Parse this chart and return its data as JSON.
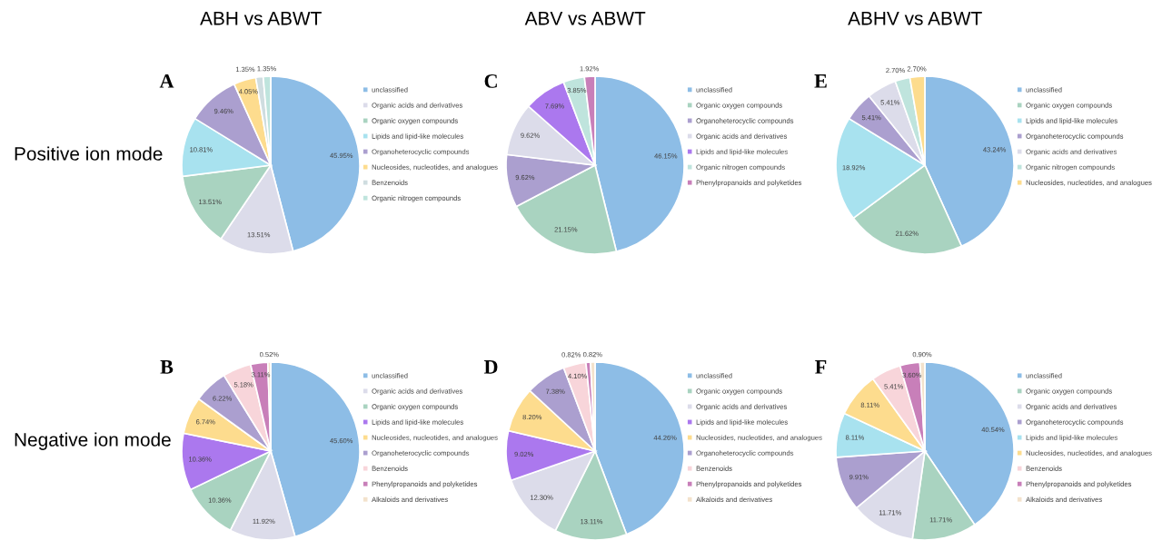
{
  "chart_data": [
    {
      "type": "pie",
      "title": "ABH vs ABWT",
      "annotations": [
        "A",
        "Positive ion mode"
      ],
      "legend": "right",
      "value_labels": [
        "45.95%",
        "13.51%",
        "13.51%",
        "10.81%",
        "9.46%",
        "4.05%",
        "1.35%",
        "1.35%"
      ],
      "categories": [
        "unclassified",
        "Organic acids and derivatives",
        "Organic oxygen compounds",
        "Lipids and lipid-like molecules",
        "Organoheterocyclic compounds",
        "Nucleosides, nucleotides, and analogues",
        "Benzenoids",
        "Organic nitrogen compounds"
      ],
      "values": [
        45.95,
        13.51,
        13.51,
        10.81,
        9.46,
        4.05,
        1.35,
        1.35
      ],
      "colors": [
        "#8dbde6",
        "#dcdcea",
        "#a9d3c0",
        "#a8e2ef",
        "#ab9fcf",
        "#fddc8e",
        "#cfdde0",
        "#bfe4dd"
      ]
    },
    {
      "type": "pie",
      "annotations": [
        "B",
        "Negative ion mode"
      ],
      "legend": "right",
      "value_labels": [
        "45.60%",
        "11.92%",
        "10.36%",
        "10.36%",
        "6.74%",
        "6.22%",
        "5.18%",
        "3.11%",
        "0.52%"
      ],
      "categories": [
        "unclassified",
        "Organic acids and derivatives",
        "Organic oxygen compounds",
        "Lipids and lipid-like molecules",
        "Nucleosides, nucleotides, and analogues",
        "Organoheterocyclic compounds",
        "Benzenoids",
        "Phenylpropanoids and polyketides",
        "Alkaloids and derivatives"
      ],
      "values": [
        45.6,
        11.92,
        10.36,
        10.36,
        6.74,
        6.22,
        5.18,
        3.11,
        0.52
      ],
      "colors": [
        "#8dbde6",
        "#dcdcea",
        "#a9d3c0",
        "#ab78ee",
        "#fddc8e",
        "#ab9fcf",
        "#f8d5da",
        "#c87fb9",
        "#f3e2cc"
      ]
    },
    {
      "type": "pie",
      "title": "ABV vs ABWT",
      "annotations": [
        "C"
      ],
      "legend": "right",
      "value_labels": [
        "46.15%",
        "21.15%",
        "9.62%",
        "9.62%",
        "7.69%",
        "3.85%",
        "1.92%"
      ],
      "categories": [
        "unclassified",
        "Organic oxygen compounds",
        "Organoheterocyclic compounds",
        "Organic acids and derivatives",
        "Lipids and lipid-like molecules",
        "Organic nitrogen compounds",
        "Phenylpropanoids and polyketides"
      ],
      "values": [
        46.15,
        21.15,
        9.62,
        9.62,
        7.69,
        3.85,
        1.92
      ],
      "colors": [
        "#8dbde6",
        "#a9d3c0",
        "#ab9fcf",
        "#dcdcea",
        "#ab78ee",
        "#bfe4dd",
        "#c87fb9"
      ]
    },
    {
      "type": "pie",
      "annotations": [
        "D"
      ],
      "legend": "right",
      "value_labels": [
        "44.26%",
        "13.11%",
        "12.30%",
        "9.02%",
        "8.20%",
        "7.38%",
        "4.10%",
        "0.82%",
        "0.82%"
      ],
      "categories": [
        "unclassified",
        "Organic oxygen compounds",
        "Organic acids and derivatives",
        "Lipids and lipid-like molecules",
        "Nucleosides, nucleotides, and analogues",
        "Organoheterocyclic compounds",
        "Benzenoids",
        "Phenylpropanoids and polyketides",
        "Alkaloids and derivatives"
      ],
      "values": [
        44.26,
        13.11,
        12.3,
        9.02,
        8.2,
        7.38,
        4.1,
        0.82,
        0.82
      ],
      "colors": [
        "#8dbde6",
        "#a9d3c0",
        "#dcdcea",
        "#ab78ee",
        "#fddc8e",
        "#ab9fcf",
        "#f8d5da",
        "#c87fb9",
        "#f3e2cc"
      ]
    },
    {
      "type": "pie",
      "title": "ABHV vs ABWT",
      "annotations": [
        "E"
      ],
      "legend": "right",
      "value_labels": [
        "43.24%",
        "21.62%",
        "18.92%",
        "5.41%",
        "5.41%",
        "2.70%",
        "2.70%"
      ],
      "categories": [
        "unclassified",
        "Organic oxygen compounds",
        "Lipids and lipid-like molecules",
        "Organoheterocyclic compounds",
        "Organic acids and derivatives",
        "Organic nitrogen compounds",
        "Nucleosides, nucleotides, and analogues"
      ],
      "values": [
        43.24,
        21.62,
        18.92,
        5.41,
        5.41,
        2.7,
        2.7
      ],
      "colors": [
        "#8dbde6",
        "#a9d3c0",
        "#a8e2ef",
        "#ab9fcf",
        "#dcdcea",
        "#bfe4dd",
        "#fddc8e"
      ]
    },
    {
      "type": "pie",
      "annotations": [
        "F"
      ],
      "legend": "right",
      "value_labels": [
        "40.54%",
        "11.71%",
        "11.71%",
        "9.91%",
        "8.11%",
        "8.11%",
        "5.41%",
        "3.60%",
        "0.90%"
      ],
      "categories": [
        "unclassified",
        "Organic oxygen compounds",
        "Organic acids and derivatives",
        "Organoheterocyclic compounds",
        "Lipids and lipid-like molecules",
        "Nucleosides, nucleotides, and analogues",
        "Benzenoids",
        "Phenylpropanoids and polyketides",
        "Alkaloids and derivatives"
      ],
      "values": [
        40.54,
        11.71,
        11.71,
        9.91,
        8.11,
        8.11,
        5.41,
        3.6,
        0.9
      ],
      "colors": [
        "#8dbde6",
        "#a9d3c0",
        "#dcdcea",
        "#ab9fcf",
        "#a8e2ef",
        "#fddc8e",
        "#f8d5da",
        "#c87fb9",
        "#f3e2cc"
      ]
    }
  ]
}
